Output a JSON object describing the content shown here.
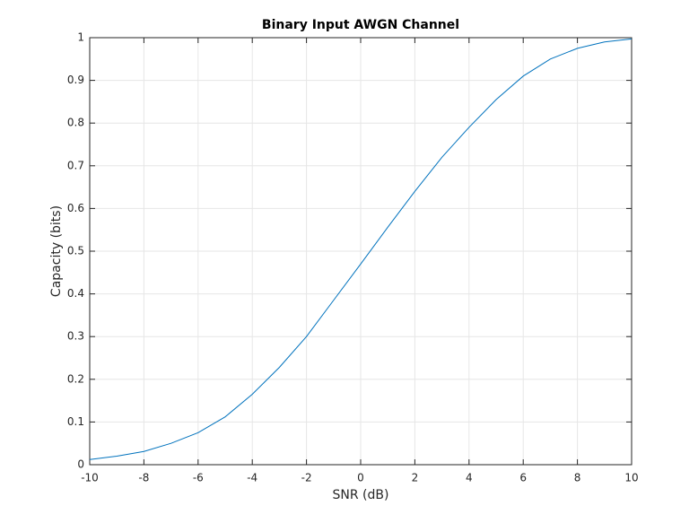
{
  "chart_data": {
    "type": "line",
    "title": "Binary Input AWGN Channel",
    "x_label": "SNR (dB)",
    "y_label": "Capacity (bits)",
    "x": [
      -10,
      -9,
      -8,
      -7,
      -6,
      -5,
      -4,
      -3,
      -2,
      -1,
      0,
      1,
      2,
      3,
      4,
      5,
      6,
      7,
      8,
      9,
      10
    ],
    "values": [
      0.012,
      0.02,
      0.031,
      0.05,
      0.075,
      0.112,
      0.165,
      0.228,
      0.3,
      0.385,
      0.47,
      0.556,
      0.64,
      0.72,
      0.79,
      0.855,
      0.91,
      0.95,
      0.975,
      0.99,
      0.997
    ],
    "color": "#0072bd",
    "xlim": [
      -10,
      10
    ],
    "xticks": [
      -10,
      -8,
      -6,
      -4,
      -2,
      0,
      2,
      4,
      6,
      8,
      10
    ],
    "ylim": [
      0,
      1
    ],
    "yticks": [
      0,
      0.1,
      0.2,
      0.3,
      0.4,
      0.5,
      0.6,
      0.7,
      0.8,
      0.9,
      1
    ],
    "grid": true
  }
}
